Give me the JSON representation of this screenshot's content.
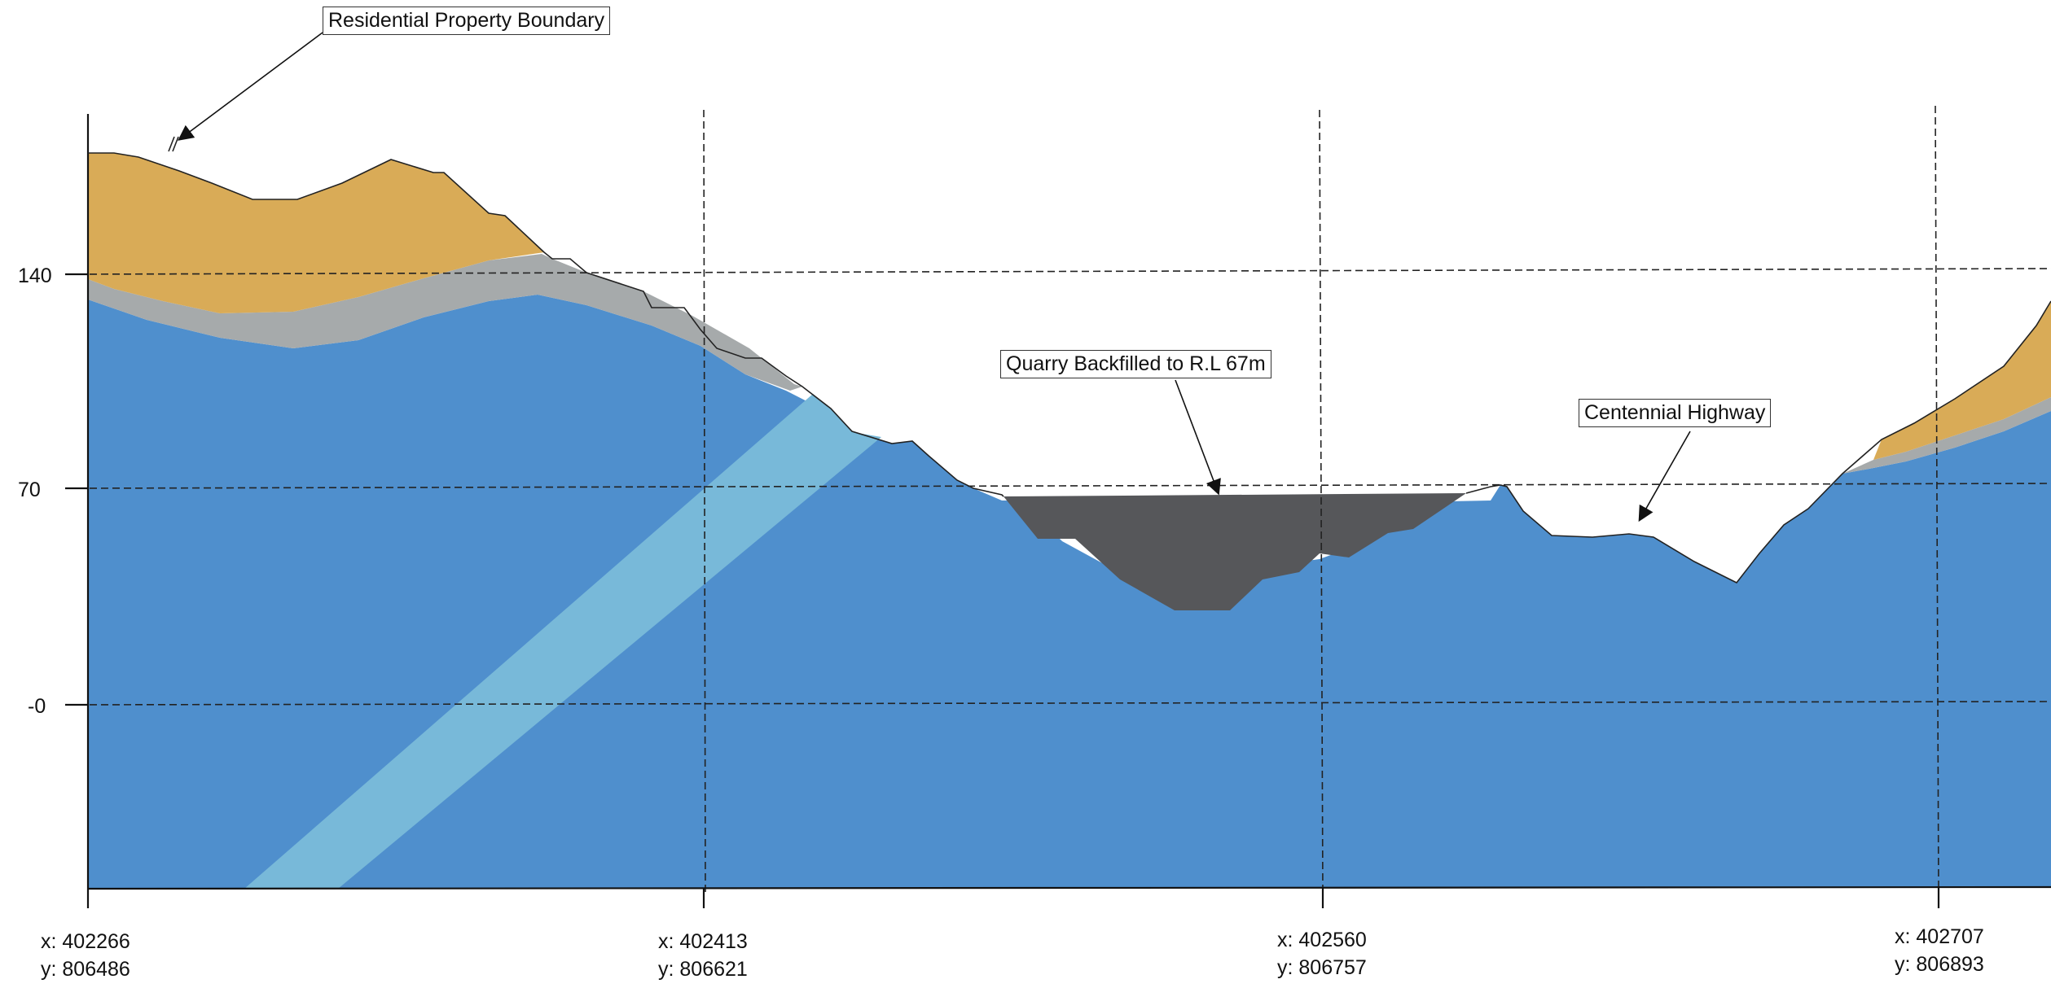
{
  "section": {
    "callouts": {
      "property_boundary": "Residential Property Boundary",
      "quarry": "Quarry Backfilled to R.L 67m",
      "highway": "Centennial Highway"
    },
    "elevation_labels": [
      "140",
      "70",
      "-0"
    ],
    "coordinates": [
      {
        "x": "x: 402266",
        "y": "y: 806486"
      },
      {
        "x": "x: 402413",
        "y": "y: 806621"
      },
      {
        "x": "x: 402560",
        "y": "y: 806757"
      },
      {
        "x": "x: 402707",
        "y": "y: 806893"
      }
    ],
    "colors": {
      "bedrock": "#4f8fcd",
      "dyke": "#78b9d9",
      "weathered": "#a6aaab",
      "soil": "#d9ab57",
      "backfill": "#56575a",
      "gridline": "#222222"
    }
  }
}
